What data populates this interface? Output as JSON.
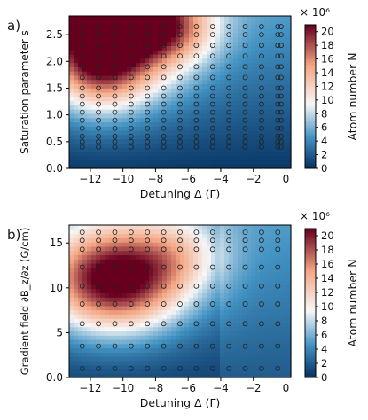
{
  "colors": {
    "low": "#053061",
    "mid_low": "#4393c3",
    "mid": "#f7f7f7",
    "mid_high": "#f4a582",
    "high": "#67001f"
  },
  "chart_data": [
    {
      "panel_label": "a)",
      "type": "heatmap",
      "xlabel": "Detuning Δ (Γ)",
      "ylabel": "Saturation parameter s",
      "colorbar_label": "Atom number N",
      "colorbar_multiplier": "× 10⁶",
      "xlim": [
        -13.3,
        0.3
      ],
      "ylim": [
        0,
        2.85
      ],
      "zlim": [
        0,
        21
      ],
      "x_ticks": [
        -12,
        -10,
        -8,
        -6,
        -4,
        -2,
        0
      ],
      "x_tick_labels": [
        "−12",
        "−10",
        "−8",
        "−6",
        "−4",
        "−2",
        "0"
      ],
      "y_ticks": [
        0.0,
        0.5,
        1.0,
        1.5,
        2.0,
        2.5
      ],
      "y_tick_labels": [
        "0.0",
        "0.5",
        "1.0",
        "1.5",
        "2.0",
        "2.5"
      ],
      "colorbar_ticks": [
        0,
        2,
        4,
        6,
        8,
        10,
        12,
        14,
        16,
        18,
        20
      ],
      "colorbar_tick_labels": [
        "0",
        "2",
        "4",
        "6",
        "8",
        "10",
        "12",
        "14",
        "16",
        "18",
        "20"
      ],
      "sample_points": {
        "x": [
          -12.5,
          -11.5,
          -10.5,
          -9.5,
          -8.5,
          -7.5,
          -6.5,
          -5.5,
          -4.5,
          -3.5,
          -2.5,
          -1.5,
          -0.5,
          -0.3
        ],
        "y": [
          0.4,
          0.5,
          0.6,
          0.75,
          0.9,
          1.05,
          1.2,
          1.35,
          1.5,
          1.7,
          1.9,
          2.1,
          2.3,
          2.5,
          2.65
        ]
      },
      "features": [
        {
          "x": -10.5,
          "y": 2.8,
          "value": 21,
          "sx": 3.2,
          "sy": 0.9
        },
        {
          "x": -11.5,
          "y": 1.9,
          "value": 8,
          "sx": 2.0,
          "sy": 0.6
        },
        {
          "x": -7.0,
          "y": 2.6,
          "value": 6,
          "sx": 1.8,
          "sy": 0.4
        }
      ]
    },
    {
      "panel_label": "b)",
      "type": "heatmap",
      "xlabel": "Detuning Δ (Γ)",
      "ylabel": "Gradient field ∂B_z/∂z (G/cm)",
      "colorbar_label": "Atom number N",
      "colorbar_multiplier": "× 10⁶",
      "xlim": [
        -13.3,
        0.3
      ],
      "ylim": [
        0,
        17
      ],
      "zlim": [
        0,
        21
      ],
      "x_ticks": [
        -12,
        -10,
        -8,
        -6,
        -4,
        -2,
        0
      ],
      "x_tick_labels": [
        "−12",
        "−10",
        "−8",
        "−6",
        "−4",
        "−2",
        "0"
      ],
      "y_ticks": [
        0.0,
        5,
        10,
        15
      ],
      "y_tick_labels": [
        "0.0",
        "5",
        "10",
        "15"
      ],
      "colorbar_ticks": [
        0,
        2,
        4,
        6,
        8,
        10,
        12,
        14,
        16,
        18,
        20
      ],
      "colorbar_tick_labels": [
        "0",
        "2",
        "4",
        "6",
        "8",
        "10",
        "12",
        "14",
        "16",
        "18",
        "20"
      ],
      "sample_points": {
        "x": [
          -12.5,
          -11.5,
          -10.5,
          -9.5,
          -8.5,
          -7.5,
          -6.5,
          -5.5,
          -4.5,
          -3.5,
          -2.5,
          -1.5,
          -0.5
        ],
        "y": [
          1.0,
          3.5,
          6.0,
          8.2,
          10.2,
          12.3,
          14.3,
          15.3,
          16.2
        ]
      },
      "features": [
        {
          "x": -10.5,
          "y": 11.0,
          "value": 20,
          "sx": 3.0,
          "sy": 4.0
        },
        {
          "x": -6.5,
          "y": 14.0,
          "value": 5,
          "sx": 2.0,
          "sy": 3.0
        }
      ]
    }
  ]
}
